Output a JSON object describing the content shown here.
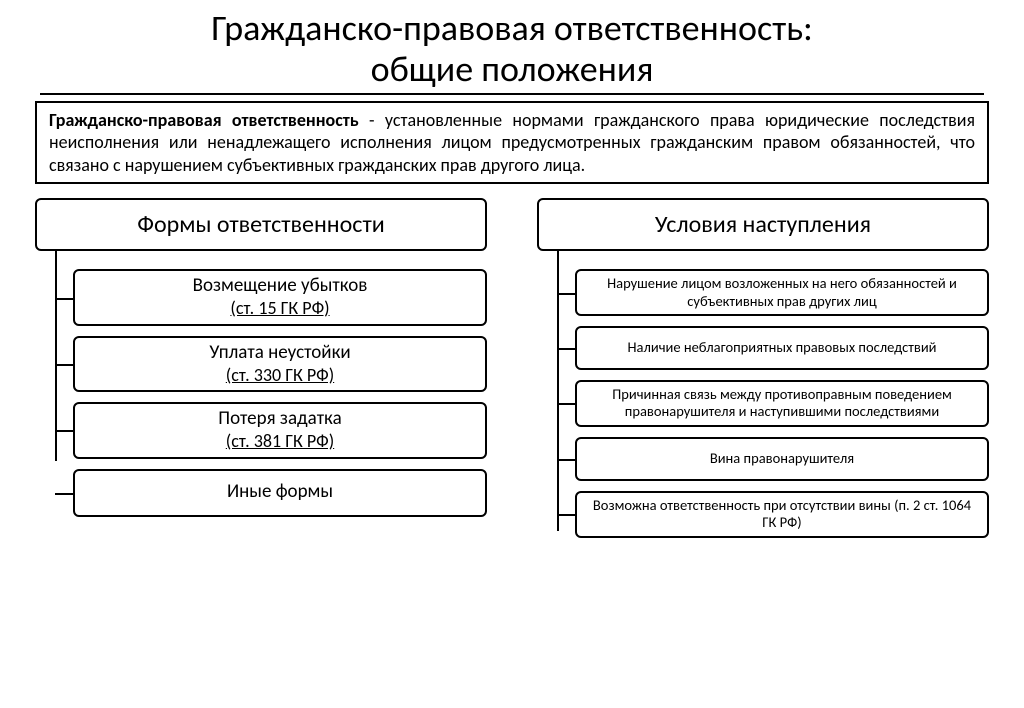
{
  "title_line1": "Гражданско-правовая ответственность:",
  "title_line2": "общие положения",
  "definition_bold": "Гражданско-правовая ответственность",
  "definition_rest": " - установленные нормами гражданского права юридические последствия неисполнения или ненадлежащего исполнения лицом предусмотренных гражданским правом обязанностей, что связано с нарушением субъективных гражданских прав другого лица.",
  "left": {
    "header": "Формы ответственности",
    "items": [
      {
        "main": "Возмещение убытков",
        "sub": "(ст. 15 ГК РФ)"
      },
      {
        "main": "Уплата неустойки",
        "sub": "(ст. 330 ГК РФ)"
      },
      {
        "main": "Потеря задатка",
        "sub": "(ст. 381 ГК РФ)"
      },
      {
        "main": "Иные формы",
        "sub": ""
      }
    ]
  },
  "right": {
    "header": "Условия наступления",
    "items": [
      {
        "main": "Нарушение лицом возложенных на него обязанностей и субъективных прав других лиц"
      },
      {
        "main": "Наличие неблагоприятных правовых последствий"
      },
      {
        "main": "Причинная связь между противоправным поведением правонарушителя и наступившими последствиями"
      },
      {
        "main": "Вина правонарушителя"
      },
      {
        "main": "Возможна ответственность при отсутствии вины (п. 2 ст. 1064 ГК РФ)"
      }
    ]
  },
  "style": {
    "type": "tree",
    "background_color": "#ffffff",
    "border_color": "#000000",
    "text_color": "#000000",
    "border_width": 2,
    "border_radius": 6,
    "title_fontsize": 36,
    "header_fontsize": 24,
    "left_item_fontsize": 19,
    "right_item_fontsize": 14.5,
    "left_vline_height": 210,
    "right_vline_height": 280
  }
}
